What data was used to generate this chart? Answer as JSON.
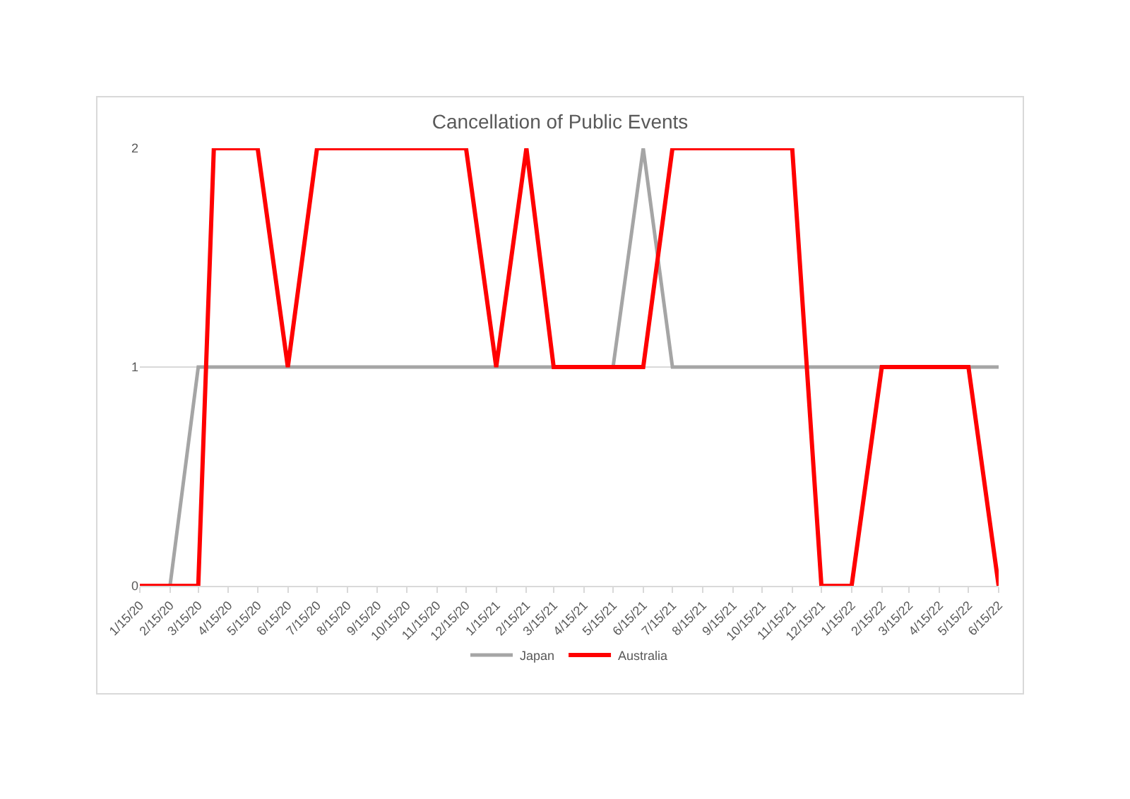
{
  "chart_data": {
    "type": "line",
    "title": "Cancellation of Public Events",
    "xlim": [
      "2020-01-15",
      "2022-06-15"
    ],
    "xticks": [
      {
        "value": "2020-01-15",
        "label": "1/15/20"
      },
      {
        "value": "2020-02-15",
        "label": "2/15/20"
      },
      {
        "value": "2020-03-15",
        "label": "3/15/20"
      },
      {
        "value": "2020-04-15",
        "label": "4/15/20"
      },
      {
        "value": "2020-05-15",
        "label": "5/15/20"
      },
      {
        "value": "2020-06-15",
        "label": "6/15/20"
      },
      {
        "value": "2020-07-15",
        "label": "7/15/20"
      },
      {
        "value": "2020-08-15",
        "label": "8/15/20"
      },
      {
        "value": "2020-09-15",
        "label": "9/15/20"
      },
      {
        "value": "2020-10-15",
        "label": "10/15/20"
      },
      {
        "value": "2020-11-15",
        "label": "11/15/20"
      },
      {
        "value": "2020-12-15",
        "label": "12/15/20"
      },
      {
        "value": "2021-01-15",
        "label": "1/15/21"
      },
      {
        "value": "2021-02-15",
        "label": "2/15/21"
      },
      {
        "value": "2021-03-15",
        "label": "3/15/21"
      },
      {
        "value": "2021-04-15",
        "label": "4/15/21"
      },
      {
        "value": "2021-05-15",
        "label": "5/15/21"
      },
      {
        "value": "2021-06-15",
        "label": "6/15/21"
      },
      {
        "value": "2021-07-15",
        "label": "7/15/21"
      },
      {
        "value": "2021-08-15",
        "label": "8/15/21"
      },
      {
        "value": "2021-09-15",
        "label": "9/15/21"
      },
      {
        "value": "2021-10-15",
        "label": "10/15/21"
      },
      {
        "value": "2021-11-15",
        "label": "11/15/21"
      },
      {
        "value": "2021-12-15",
        "label": "12/15/21"
      },
      {
        "value": "2022-01-15",
        "label": "1/15/22"
      },
      {
        "value": "2022-02-15",
        "label": "2/15/22"
      },
      {
        "value": "2022-03-15",
        "label": "3/15/22"
      },
      {
        "value": "2022-04-15",
        "label": "4/15/22"
      },
      {
        "value": "2022-05-15",
        "label": "5/15/22"
      },
      {
        "value": "2022-06-15",
        "label": "6/15/22"
      }
    ],
    "ylim": [
      0,
      2
    ],
    "yticks": [
      0,
      1,
      2
    ],
    "grid": "y",
    "legend": "bottom",
    "series": [
      {
        "name": "Japan",
        "color": "#a5a5a5",
        "x": [
          "2020-01-15",
          "2020-02-15",
          "2020-03-15",
          "2021-05-15",
          "2021-06-15",
          "2021-07-15",
          "2022-06-15"
        ],
        "values": [
          0,
          0,
          1,
          1,
          2,
          1,
          1
        ]
      },
      {
        "name": "Australia",
        "color": "#ff0000",
        "x": [
          "2020-01-15",
          "2020-03-15",
          "2020-03-31",
          "2020-05-15",
          "2020-06-15",
          "2020-07-15",
          "2020-12-15",
          "2021-01-15",
          "2021-02-15",
          "2021-03-15",
          "2021-06-15",
          "2021-07-15",
          "2021-11-15",
          "2021-12-15",
          "2022-01-15",
          "2022-02-15",
          "2022-05-15",
          "2022-06-15"
        ],
        "values": [
          0,
          0,
          2,
          2,
          1,
          2,
          2,
          1,
          2,
          1,
          1,
          2,
          2,
          0,
          0,
          1,
          1,
          0
        ]
      }
    ]
  }
}
